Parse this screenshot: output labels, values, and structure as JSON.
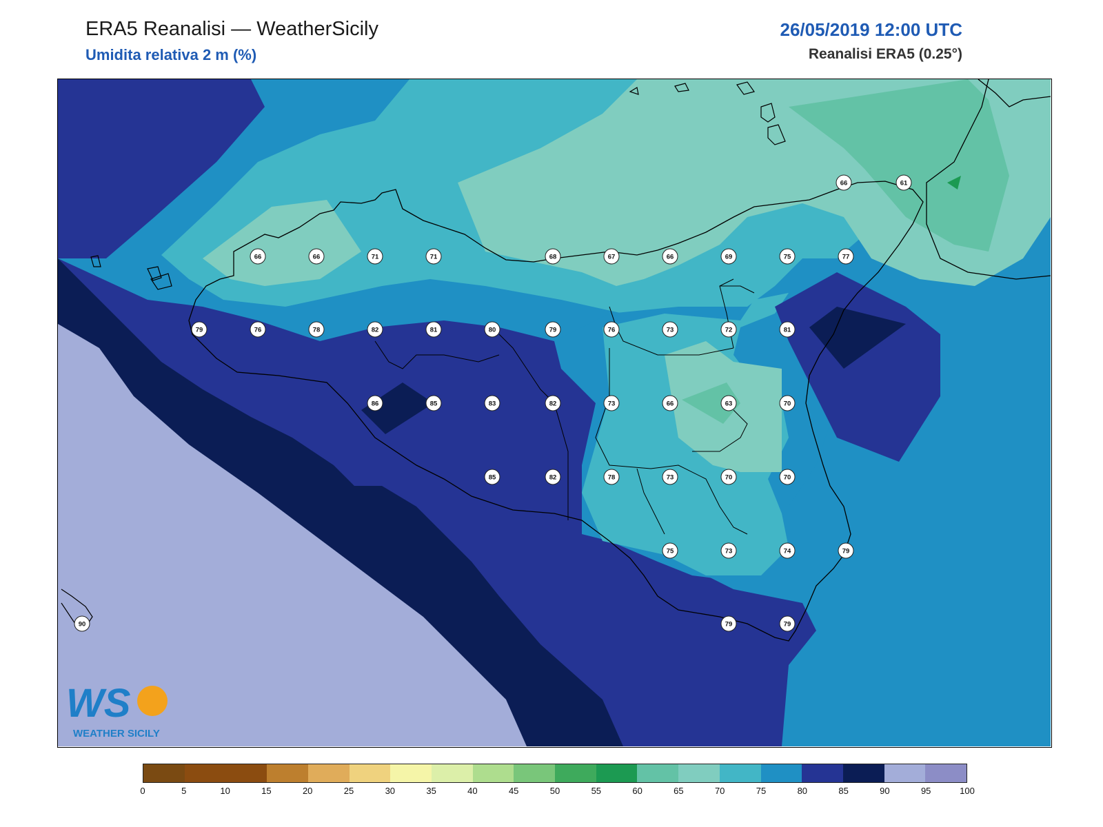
{
  "header": {
    "title": "ERA5 Reanalisi — WeatherSicily",
    "subtitle": "Umidita relativa 2 m (%)",
    "datetime": "26/05/2019 12:00 UTC",
    "source": "Reanalisi ERA5 (0.25°)"
  },
  "logo": {
    "text": "WEATHER SICILY",
    "letters": "WS"
  },
  "colorbar": {
    "ticks": [
      "0",
      "5",
      "10",
      "15",
      "20",
      "25",
      "30",
      "35",
      "40",
      "45",
      "50",
      "55",
      "60",
      "65",
      "70",
      "75",
      "80",
      "85",
      "90",
      "95",
      "100"
    ],
    "colors": [
      "#7a4a12",
      "#8b4c10",
      "#8b4c10",
      "#bd7f2e",
      "#e0ac5a",
      "#efd27e",
      "#f5f5a8",
      "#dcefa9",
      "#aedd8e",
      "#79c67a",
      "#3eaa5c",
      "#1c9a52",
      "#63c2a6",
      "#80cdbf",
      "#42b6c6",
      "#1f90c4",
      "#253494",
      "#0b1d55",
      "#a3add9",
      "#8c8dc6"
    ]
  },
  "stations": [
    {
      "v": "66"
    },
    {
      "v": "61"
    },
    {
      "v": "66"
    },
    {
      "v": "66"
    },
    {
      "v": "71"
    },
    {
      "v": "71"
    },
    {
      "v": "68"
    },
    {
      "v": "67"
    },
    {
      "v": "66"
    },
    {
      "v": "69"
    },
    {
      "v": "75"
    },
    {
      "v": "77"
    },
    {
      "v": "79"
    },
    {
      "v": "76"
    },
    {
      "v": "78"
    },
    {
      "v": "82"
    },
    {
      "v": "81"
    },
    {
      "v": "80"
    },
    {
      "v": "79"
    },
    {
      "v": "76"
    },
    {
      "v": "73"
    },
    {
      "v": "72"
    },
    {
      "v": "81"
    },
    {
      "v": "86"
    },
    {
      "v": "85"
    },
    {
      "v": "83"
    },
    {
      "v": "82"
    },
    {
      "v": "73"
    },
    {
      "v": "66"
    },
    {
      "v": "63"
    },
    {
      "v": "70"
    },
    {
      "v": "85"
    },
    {
      "v": "82"
    },
    {
      "v": "78"
    },
    {
      "v": "73"
    },
    {
      "v": "70"
    },
    {
      "v": "70"
    },
    {
      "v": "75"
    },
    {
      "v": "73"
    },
    {
      "v": "74"
    },
    {
      "v": "79"
    },
    {
      "v": "79"
    },
    {
      "v": "79"
    },
    {
      "v": "90"
    }
  ]
}
